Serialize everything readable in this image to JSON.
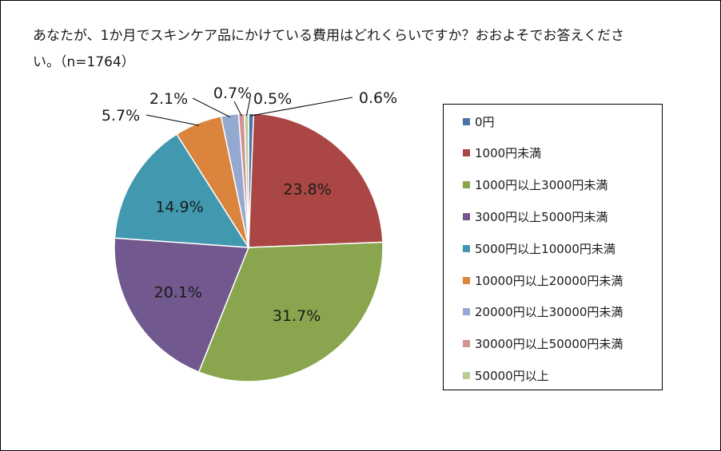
{
  "chart_data": {
    "type": "pie",
    "title": "あなたが、1か月でスキンケア品にかけている費用はどれくらいですか？おおよそでお答えください。（n=1764）",
    "categories": [
      "0円",
      "1000円未満",
      "1000円以上3000円未満",
      "3000円以上5000円未満",
      "5000円以上10000円未満",
      "10000円以上20000円未満",
      "20000円以上30000円未満",
      "30000円以上50000円未満",
      "50000円以上"
    ],
    "values": [
      0.6,
      23.8,
      31.7,
      20.1,
      14.9,
      5.7,
      2.1,
      0.7,
      0.5
    ],
    "labels": [
      "0.6%",
      "23.8%",
      "31.7%",
      "20.1%",
      "14.9%",
      "5.7%",
      "2.1%",
      "0.7%",
      "0.5%"
    ],
    "colors": [
      "#4a72a8",
      "#aa4643",
      "#89a54e",
      "#71588f",
      "#4198af",
      "#db843d",
      "#93a9cf",
      "#d19392",
      "#b9cd96"
    ],
    "legend_position": "right"
  }
}
